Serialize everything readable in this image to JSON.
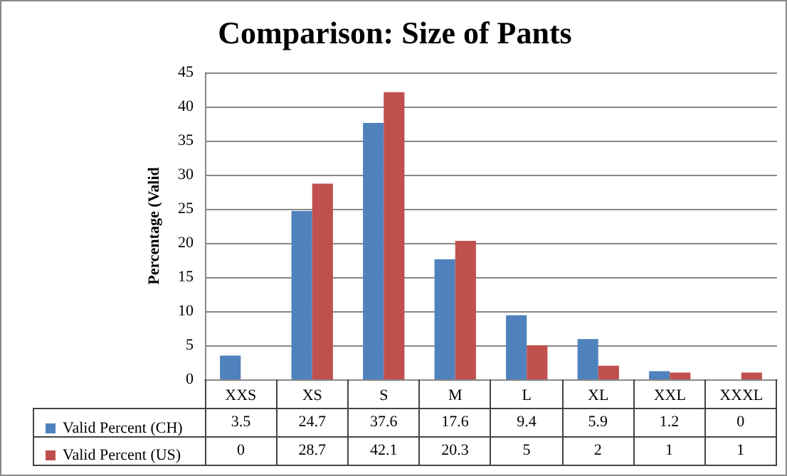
{
  "chart_data": {
    "type": "bar",
    "title": "Comparison: Size of Pants",
    "ylabel": "Percentage (Valid",
    "categories": [
      "XXS",
      "XS",
      "S",
      "M",
      "L",
      "XL",
      "XXL",
      "XXXL"
    ],
    "series": [
      {
        "name": "Valid Percent (CH)",
        "color": "#4f81bd",
        "values": [
          3.5,
          24.7,
          37.6,
          17.6,
          9.4,
          5.9,
          1.2,
          0
        ]
      },
      {
        "name": "Valid Percent (US)",
        "color": "#c0504d",
        "values": [
          0,
          28.7,
          42.1,
          20.3,
          5,
          2,
          1,
          1
        ]
      }
    ],
    "ylim": [
      0,
      45
    ],
    "yticks": [
      0,
      5,
      10,
      15,
      20,
      25,
      30,
      35,
      40,
      45
    ],
    "grid": "y",
    "legend": "bottom",
    "data_labels": true
  }
}
